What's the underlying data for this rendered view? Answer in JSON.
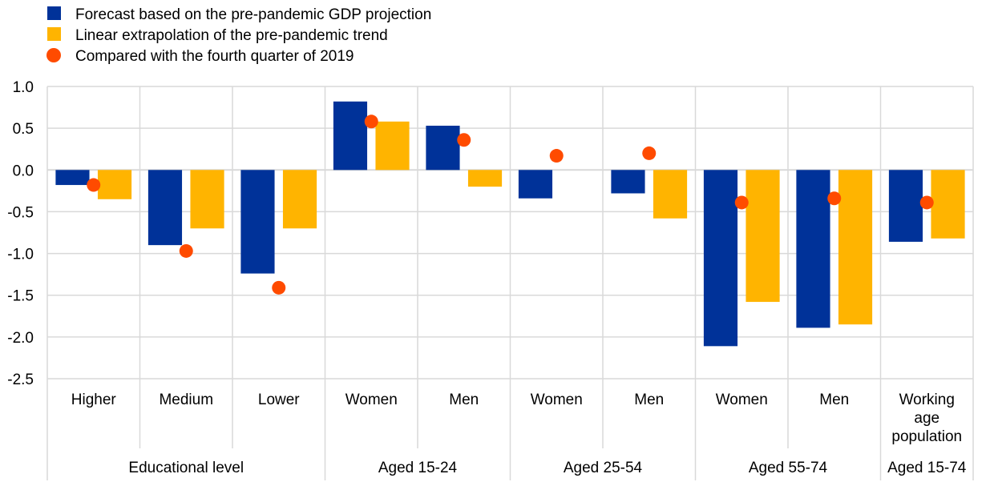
{
  "chart_data": {
    "type": "bar",
    "ylim": [
      -2.5,
      1.0
    ],
    "yticks": [
      "1.0",
      "0.5",
      "0.0",
      "-0.5",
      "-1.0",
      "-1.5",
      "-2.0",
      "-2.5"
    ],
    "ytick_values": [
      1.0,
      0.5,
      0.0,
      -0.5,
      -1.0,
      -1.5,
      -2.0,
      -2.5
    ],
    "grid": true,
    "legend_placement": "top-left",
    "categories": [
      [
        "Higher"
      ],
      [
        "Medium"
      ],
      [
        "Lower"
      ],
      [
        "Women"
      ],
      [
        "Men"
      ],
      [
        "Women"
      ],
      [
        "Men"
      ],
      [
        "Women"
      ],
      [
        "Men"
      ],
      [
        "Working",
        "age",
        "population"
      ]
    ],
    "groups": [
      {
        "label": "Educational level",
        "count": 3
      },
      {
        "label": "Aged 15-24",
        "count": 2
      },
      {
        "label": "Aged 25-54",
        "count": 2
      },
      {
        "label": "Aged 55-74",
        "count": 2
      },
      {
        "label": "Aged 15-74",
        "count": 1
      }
    ],
    "series": [
      {
        "name": "Forecast based on the pre-pandemic GDP projection",
        "kind": "bar",
        "color": "#003299",
        "values": [
          -0.18,
          -0.9,
          -1.24,
          0.82,
          0.53,
          -0.34,
          -0.28,
          -2.11,
          -1.89,
          -0.86
        ]
      },
      {
        "name": "Linear extrapolation of the pre-pandemic trend",
        "kind": "bar",
        "color": "#FFB400",
        "values": [
          -0.35,
          -0.7,
          -0.7,
          0.58,
          -0.2,
          0.0,
          -0.58,
          -1.58,
          -1.85,
          -0.82
        ]
      },
      {
        "name": "Compared with the fourth quarter of 2019",
        "kind": "dot",
        "color": "#FF4B00",
        "values": [
          -0.18,
          -0.97,
          -1.41,
          0.58,
          0.36,
          0.17,
          0.2,
          -0.39,
          -0.34,
          -0.39
        ]
      }
    ]
  }
}
